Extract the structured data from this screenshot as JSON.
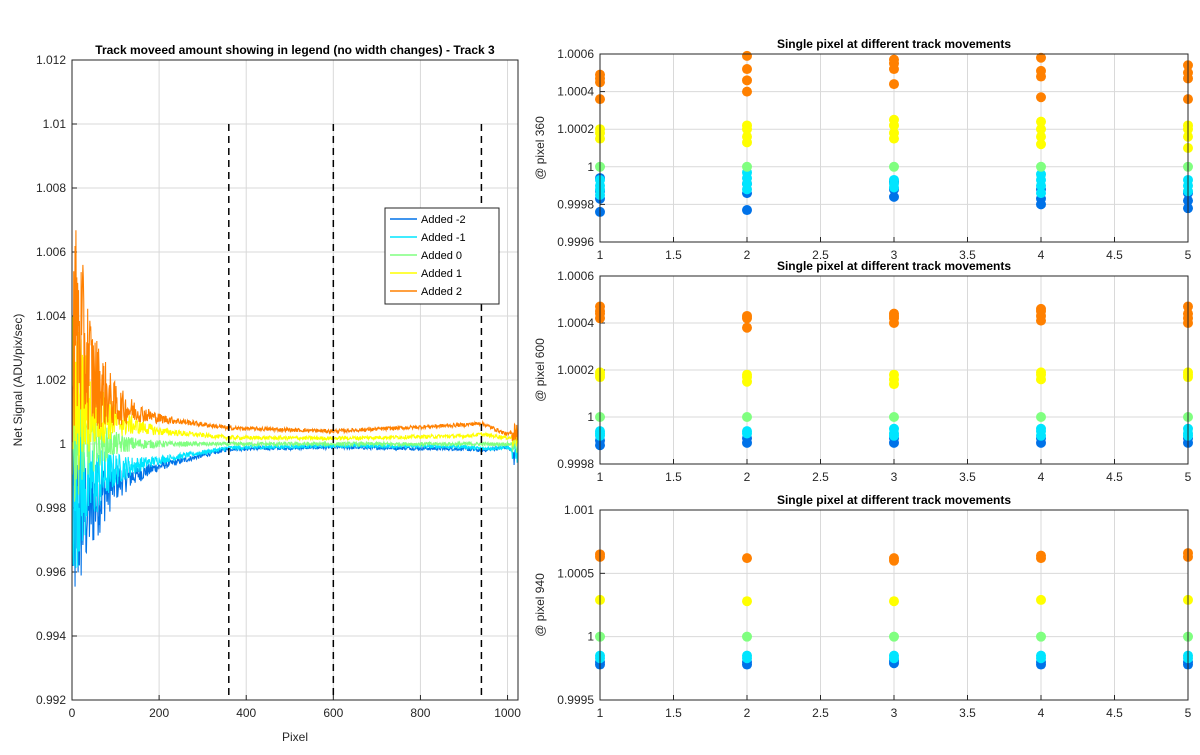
{
  "chart_data": [
    {
      "type": "line",
      "title": "Track moveed amount showing in legend (no width changes) - Track 3",
      "xlabel": "Pixel",
      "ylabel": "Net Signal (ADU/pix/sec)",
      "xlim": [
        0,
        1024
      ],
      "ylim": [
        0.992,
        1.012
      ],
      "xticks": [
        0,
        200,
        400,
        600,
        800,
        1000
      ],
      "yticks": [
        0.992,
        0.994,
        0.996,
        0.998,
        1,
        1.002,
        1.004,
        1.006,
        1.008,
        1.01,
        1.012
      ],
      "grid": true,
      "legend_position": "right",
      "vertical_markers": [
        360,
        600,
        940
      ],
      "series": [
        {
          "name": "Added -2",
          "color": "#0072e8",
          "noise_amplitude": 0.0035,
          "x": [
            0,
            50,
            100,
            200,
            360,
            600,
            900,
            940,
            1000,
            1020
          ],
          "y": [
            0.9975,
            0.9982,
            0.9988,
            0.9993,
            0.99985,
            0.9999,
            0.99985,
            0.9998,
            0.9999,
            0.9996
          ]
        },
        {
          "name": "Added -1",
          "color": "#00e5ff",
          "noise_amplitude": 0.003,
          "x": [
            0,
            50,
            100,
            200,
            360,
            600,
            900,
            940,
            1000,
            1020
          ],
          "y": [
            0.9985,
            0.9988,
            0.9992,
            0.9995,
            0.99988,
            0.99995,
            0.99992,
            0.99985,
            0.9999,
            0.9997
          ]
        },
        {
          "name": "Added 0",
          "color": "#80ff80",
          "noise_amplitude": 0.002,
          "x": [
            0,
            100,
            360,
            600,
            940,
            1020
          ],
          "y": [
            1.0,
            1.0,
            1.0,
            1.0,
            1.0,
            1.0
          ]
        },
        {
          "name": "Added 1",
          "color": "#ffff00",
          "noise_amplitude": 0.003,
          "x": [
            0,
            50,
            100,
            200,
            360,
            600,
            900,
            940,
            1000,
            1020
          ],
          "y": [
            1.0015,
            1.001,
            1.0007,
            1.0004,
            1.0002,
            1.00018,
            1.00025,
            1.0003,
            1.0002,
            1.0002
          ]
        },
        {
          "name": "Added 2",
          "color": "#ff8000",
          "noise_amplitude": 0.004,
          "x": [
            0,
            50,
            100,
            200,
            360,
            600,
            900,
            940,
            1000,
            1020
          ],
          "y": [
            1.004,
            1.002,
            1.0012,
            1.0008,
            1.0005,
            1.0004,
            1.0006,
            1.00065,
            1.0003,
            1.0004
          ]
        }
      ]
    },
    {
      "type": "scatter",
      "title": "Single pixel at different track movements",
      "xlabel": "",
      "ylabel": "@ pixel 360",
      "xlim": [
        1,
        5
      ],
      "ylim": [
        0.9996,
        1.0006
      ],
      "xticks": [
        1,
        1.5,
        2,
        2.5,
        3,
        3.5,
        4,
        4.5,
        5
      ],
      "yticks": [
        0.9996,
        0.9998,
        1,
        1.0002,
        1.0004,
        1.0006
      ],
      "grid": true,
      "series": [
        {
          "color": "#0072e8",
          "x": [
            1,
            1,
            1,
            1,
            2,
            2,
            2,
            3,
            3,
            3,
            4,
            4,
            4,
            5,
            5,
            5
          ],
          "y": [
            0.99976,
            0.99983,
            0.99987,
            0.99994,
            0.99977,
            0.99986,
            0.99991,
            0.99984,
            0.99988,
            0.99992,
            0.9998,
            0.99983,
            0.99988,
            0.99978,
            0.99982,
            0.99986
          ]
        },
        {
          "color": "#00e5ff",
          "x": [
            1,
            1,
            1,
            1,
            2,
            2,
            2,
            2,
            3,
            3,
            3,
            4,
            4,
            4,
            4,
            5,
            5,
            5
          ],
          "y": [
            0.99985,
            0.99988,
            0.9999,
            0.99993,
            0.99988,
            0.99991,
            0.99994,
            0.99997,
            0.99989,
            0.99991,
            0.99993,
            0.99986,
            0.9999,
            0.99993,
            0.99996,
            0.99987,
            0.9999,
            0.99993
          ]
        },
        {
          "color": "#80ff80",
          "x": [
            1,
            2,
            3,
            4,
            5
          ],
          "y": [
            1.0,
            1.0,
            1.0,
            1.0,
            1.0
          ]
        },
        {
          "color": "#ffff00",
          "x": [
            1,
            1,
            1,
            2,
            2,
            2,
            2,
            3,
            3,
            3,
            3,
            4,
            4,
            4,
            4,
            5,
            5,
            5,
            5
          ],
          "y": [
            1.00015,
            1.00018,
            1.0002,
            1.00013,
            1.00016,
            1.0002,
            1.00022,
            1.00015,
            1.00018,
            1.00022,
            1.00025,
            1.00012,
            1.00016,
            1.0002,
            1.00024,
            1.0001,
            1.00016,
            1.0002,
            1.00022
          ]
        },
        {
          "color": "#ff8000",
          "x": [
            1,
            1,
            1,
            1,
            2,
            2,
            2,
            2,
            3,
            3,
            3,
            3,
            4,
            4,
            4,
            4,
            5,
            5,
            5,
            5
          ],
          "y": [
            1.00036,
            1.00045,
            1.00047,
            1.00049,
            1.0004,
            1.00046,
            1.00052,
            1.00059,
            1.00044,
            1.00052,
            1.00055,
            1.00057,
            1.00037,
            1.00048,
            1.00051,
            1.00058,
            1.00036,
            1.00047,
            1.0005,
            1.00054
          ]
        }
      ]
    },
    {
      "type": "scatter",
      "title": "Single pixel at different track movements",
      "xlabel": "",
      "ylabel": "@ pixel 600",
      "xlim": [
        1,
        5
      ],
      "ylim": [
        0.9998,
        1.0006
      ],
      "xticks": [
        1,
        1.5,
        2,
        2.5,
        3,
        3.5,
        4,
        4.5,
        5
      ],
      "yticks": [
        0.9998,
        1,
        1.0002,
        1.0004,
        1.0006
      ],
      "grid": true,
      "series": [
        {
          "color": "#0072e8",
          "x": [
            1,
            1,
            2,
            2,
            3,
            3,
            4,
            4,
            5,
            5
          ],
          "y": [
            0.99988,
            0.9999,
            0.99989,
            0.99991,
            0.99989,
            0.99991,
            0.99989,
            0.99991,
            0.99989,
            0.99991
          ]
        },
        {
          "color": "#00e5ff",
          "x": [
            1,
            1,
            1,
            2,
            2,
            3,
            3,
            3,
            4,
            4,
            4,
            5,
            5,
            5
          ],
          "y": [
            0.99992,
            0.99993,
            0.99994,
            0.99993,
            0.99994,
            0.99992,
            0.99993,
            0.99995,
            0.99992,
            0.99994,
            0.99995,
            0.99992,
            0.99993,
            0.99995
          ]
        },
        {
          "color": "#80ff80",
          "x": [
            1,
            2,
            3,
            4,
            5
          ],
          "y": [
            1.0,
            1.0,
            1.0,
            1.0,
            1.0
          ]
        },
        {
          "color": "#ffff00",
          "x": [
            1,
            1,
            1,
            2,
            2,
            2,
            3,
            3,
            3,
            4,
            4,
            4,
            5,
            5,
            5
          ],
          "y": [
            1.00017,
            1.00018,
            1.00019,
            1.00015,
            1.00017,
            1.00018,
            1.00014,
            1.00016,
            1.00018,
            1.00016,
            1.00018,
            1.00019,
            1.00017,
            1.00018,
            1.00019
          ]
        },
        {
          "color": "#ff8000",
          "x": [
            1,
            1,
            1,
            1,
            2,
            2,
            2,
            3,
            3,
            3,
            3,
            4,
            4,
            4,
            4,
            5,
            5,
            5,
            5
          ],
          "y": [
            1.00042,
            1.00044,
            1.00045,
            1.00047,
            1.00038,
            1.00042,
            1.00043,
            1.0004,
            1.00042,
            1.00043,
            1.00044,
            1.00041,
            1.00043,
            1.00045,
            1.00046,
            1.0004,
            1.00042,
            1.00044,
            1.00047
          ]
        }
      ]
    },
    {
      "type": "scatter",
      "title": "Single pixel at different track movements",
      "xlabel": "",
      "ylabel": "@ pixel 940",
      "xlim": [
        1,
        5
      ],
      "ylim": [
        0.9995,
        1.001
      ],
      "xticks": [
        1,
        1.5,
        2,
        2.5,
        3,
        3.5,
        4,
        4.5,
        5
      ],
      "yticks": [
        0.9995,
        1,
        1.0005,
        1.001
      ],
      "grid": true,
      "series": [
        {
          "color": "#0072e8",
          "x": [
            1,
            1,
            2,
            2,
            3,
            3,
            4,
            4,
            5,
            5
          ],
          "y": [
            0.99978,
            0.9998,
            0.99978,
            0.9998,
            0.99979,
            0.99981,
            0.99978,
            0.9998,
            0.99978,
            0.9998
          ]
        },
        {
          "color": "#00e5ff",
          "x": [
            1,
            1,
            2,
            2,
            3,
            3,
            4,
            4,
            5,
            5
          ],
          "y": [
            0.99983,
            0.99985,
            0.99983,
            0.99985,
            0.99983,
            0.99985,
            0.99983,
            0.99985,
            0.99983,
            0.99985
          ]
        },
        {
          "color": "#80ff80",
          "x": [
            1,
            2,
            3,
            4,
            5
          ],
          "y": [
            1.0,
            1.0,
            1.0,
            1.0,
            1.0
          ]
        },
        {
          "color": "#ffff00",
          "x": [
            1,
            2,
            3,
            4,
            5
          ],
          "y": [
            1.00029,
            1.00028,
            1.00028,
            1.00029,
            1.00029
          ]
        },
        {
          "color": "#ff8000",
          "x": [
            1,
            1,
            2,
            3,
            3,
            4,
            4,
            5,
            5
          ],
          "y": [
            1.00063,
            1.00065,
            1.00062,
            1.0006,
            1.00062,
            1.00062,
            1.00064,
            1.00063,
            1.00066
          ]
        }
      ]
    }
  ]
}
